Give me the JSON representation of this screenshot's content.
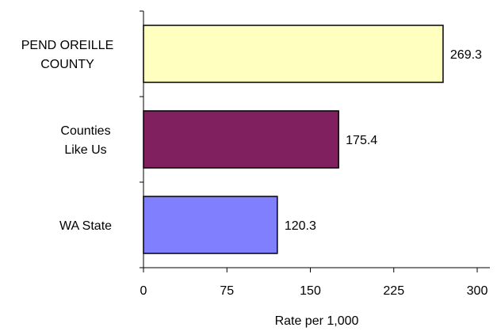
{
  "chart_data": {
    "type": "bar",
    "orientation": "horizontal",
    "title": "",
    "xlabel": "Rate per 1,000",
    "ylabel": "",
    "xlim": [
      0,
      300
    ],
    "x_ticks": [
      0,
      75,
      150,
      225,
      300
    ],
    "grid": false,
    "legend": "none",
    "categories": [
      [
        "PEND OREILLE",
        "COUNTY"
      ],
      [
        "Counties",
        "Like Us"
      ],
      [
        "WA State"
      ]
    ],
    "values": [
      269.3,
      175.4,
      120.3
    ],
    "data_labels": [
      "269.3",
      "175.4",
      "120.3"
    ],
    "colors": [
      "#FFFFC0",
      "#80205E",
      "#8080FF"
    ]
  }
}
